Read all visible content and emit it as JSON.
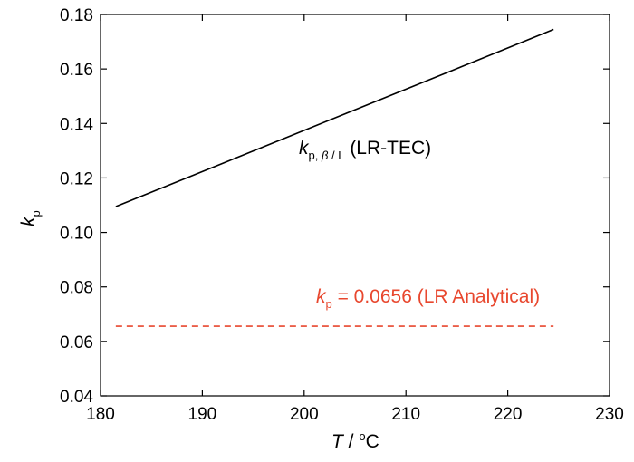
{
  "chart_data": {
    "type": "line",
    "xlabel": {
      "var": "T",
      "sep": " / ",
      "deg": "o",
      "unit": "C"
    },
    "ylabel": {
      "var": "k",
      "sub": "p"
    },
    "xlim": [
      180,
      230
    ],
    "ylim": [
      0.04,
      0.18
    ],
    "xticks": [
      180,
      190,
      200,
      210,
      220,
      230
    ],
    "yticks": [
      0.04,
      0.06,
      0.08,
      0.1,
      0.12,
      0.14,
      0.16,
      0.18
    ],
    "xtick_labels": [
      "180",
      "190",
      "200",
      "210",
      "220",
      "230"
    ],
    "ytick_labels": [
      "0.04",
      "0.06",
      "0.08",
      "0.10",
      "0.12",
      "0.14",
      "0.16",
      "0.18"
    ],
    "grid": false,
    "series": [
      {
        "style": "solid",
        "color": "#000000",
        "x": [
          181.5,
          224.5
        ],
        "y": [
          0.1095,
          0.1745
        ],
        "label": {
          "var": "k",
          "sub": "p, ",
          "subgreek": "β",
          "subrest": " / L",
          "text": " (LR-TEC)"
        }
      },
      {
        "style": "dashed",
        "color": "#e8472e",
        "x": [
          181.5,
          224.5
        ],
        "y": [
          0.0656,
          0.0656
        ],
        "label": {
          "var": "k",
          "sub": "p",
          "text": " = 0.0656 (LR Analytical)"
        }
      }
    ]
  }
}
